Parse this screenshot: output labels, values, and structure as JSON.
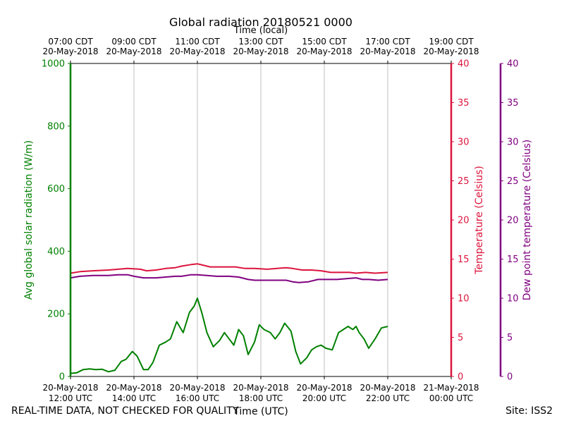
{
  "chart_data": {
    "type": "line",
    "title": "Global radiation 20180521 0000",
    "top_axis_label": "Time (local)",
    "xlabel": "Time (UTC)",
    "ylabel_left": "Avg global solar radiation (W/m)",
    "ylabel_right1": "Temperature (Celsius)",
    "ylabel_right2": "Dew point temperature (Celsius)",
    "x_range_utc_hours": [
      12,
      24
    ],
    "ylim_radiation": [
      0,
      1000
    ],
    "ylim_temperature": [
      0,
      40
    ],
    "ylim_dewpoint": [
      0,
      40
    ],
    "grid": "vertical",
    "x_ticks_utc": [
      {
        "hour": 12,
        "date": "20-May-2018",
        "time": "12:00 UTC"
      },
      {
        "hour": 14,
        "date": "20-May-2018",
        "time": "14:00 UTC"
      },
      {
        "hour": 16,
        "date": "20-May-2018",
        "time": "16:00 UTC"
      },
      {
        "hour": 18,
        "date": "20-May-2018",
        "time": "18:00 UTC"
      },
      {
        "hour": 20,
        "date": "20-May-2018",
        "time": "20:00 UTC"
      },
      {
        "hour": 22,
        "date": "20-May-2018",
        "time": "22:00 UTC"
      },
      {
        "hour": 24,
        "date": "21-May-2018",
        "time": "00:00 UTC"
      }
    ],
    "x_ticks_local": [
      {
        "hour": 12,
        "time": "07:00 CDT",
        "date": "20-May-2018"
      },
      {
        "hour": 14,
        "time": "09:00 CDT",
        "date": "20-May-2018"
      },
      {
        "hour": 16,
        "time": "11:00 CDT",
        "date": "20-May-2018"
      },
      {
        "hour": 18,
        "time": "13:00 CDT",
        "date": "20-May-2018"
      },
      {
        "hour": 20,
        "time": "15:00 CDT",
        "date": "20-May-2018"
      },
      {
        "hour": 22,
        "time": "17:00 CDT",
        "date": "20-May-2018"
      },
      {
        "hour": 24,
        "time": "19:00 CDT",
        "date": "20-May-2018"
      }
    ],
    "y_ticks_radiation": [
      "0",
      "200",
      "400",
      "600",
      "800",
      "1000"
    ],
    "y_ticks_temperature": [
      "0",
      "5",
      "10",
      "15",
      "20",
      "25",
      "30",
      "35",
      "40"
    ],
    "y_ticks_dewpoint": [
      "0",
      "5",
      "10",
      "15",
      "20",
      "25",
      "30",
      "35",
      "40"
    ],
    "series": [
      {
        "name": "Avg global solar radiation",
        "axis": "radiation",
        "color": "#008000",
        "points": [
          [
            12.0,
            10
          ],
          [
            12.2,
            12
          ],
          [
            12.4,
            22
          ],
          [
            12.6,
            24
          ],
          [
            12.8,
            22
          ],
          [
            13.0,
            23
          ],
          [
            13.2,
            15
          ],
          [
            13.4,
            20
          ],
          [
            13.6,
            48
          ],
          [
            13.75,
            55
          ],
          [
            13.95,
            80
          ],
          [
            14.1,
            65
          ],
          [
            14.3,
            22
          ],
          [
            14.45,
            22
          ],
          [
            14.6,
            45
          ],
          [
            14.8,
            100
          ],
          [
            15.0,
            110
          ],
          [
            15.15,
            120
          ],
          [
            15.35,
            175
          ],
          [
            15.55,
            140
          ],
          [
            15.75,
            205
          ],
          [
            15.9,
            225
          ],
          [
            16.0,
            250
          ],
          [
            16.15,
            200
          ],
          [
            16.3,
            140
          ],
          [
            16.5,
            95
          ],
          [
            16.7,
            115
          ],
          [
            16.85,
            140
          ],
          [
            17.0,
            120
          ],
          [
            17.15,
            100
          ],
          [
            17.3,
            150
          ],
          [
            17.45,
            130
          ],
          [
            17.6,
            70
          ],
          [
            17.8,
            110
          ],
          [
            17.95,
            165
          ],
          [
            18.1,
            150
          ],
          [
            18.3,
            140
          ],
          [
            18.45,
            120
          ],
          [
            18.6,
            140
          ],
          [
            18.75,
            170
          ],
          [
            18.95,
            145
          ],
          [
            19.1,
            80
          ],
          [
            19.25,
            40
          ],
          [
            19.45,
            60
          ],
          [
            19.6,
            85
          ],
          [
            19.75,
            95
          ],
          [
            19.9,
            100
          ],
          [
            20.05,
            90
          ],
          [
            20.25,
            85
          ],
          [
            20.45,
            140
          ],
          [
            20.6,
            150
          ],
          [
            20.75,
            160
          ],
          [
            20.9,
            150
          ],
          [
            21.0,
            160
          ],
          [
            21.1,
            140
          ],
          [
            21.25,
            120
          ],
          [
            21.4,
            90
          ],
          [
            21.6,
            120
          ],
          [
            21.8,
            155
          ],
          [
            22.0,
            160
          ]
        ]
      },
      {
        "name": "Temperature",
        "axis": "temperature",
        "color": "#dc143c",
        "points": [
          [
            12.0,
            13.2
          ],
          [
            12.3,
            13.4
          ],
          [
            12.7,
            13.5
          ],
          [
            13.2,
            13.6
          ],
          [
            13.5,
            13.7
          ],
          [
            13.8,
            13.8
          ],
          [
            14.2,
            13.7
          ],
          [
            14.4,
            13.5
          ],
          [
            14.7,
            13.6
          ],
          [
            15.0,
            13.8
          ],
          [
            15.3,
            13.9
          ],
          [
            15.5,
            14.1
          ],
          [
            15.8,
            14.3
          ],
          [
            16.0,
            14.4
          ],
          [
            16.2,
            14.2
          ],
          [
            16.4,
            14.0
          ],
          [
            16.8,
            14.0
          ],
          [
            17.2,
            14.0
          ],
          [
            17.5,
            13.8
          ],
          [
            17.8,
            13.8
          ],
          [
            18.2,
            13.7
          ],
          [
            18.5,
            13.8
          ],
          [
            18.8,
            13.9
          ],
          [
            19.0,
            13.8
          ],
          [
            19.3,
            13.6
          ],
          [
            19.6,
            13.6
          ],
          [
            19.9,
            13.5
          ],
          [
            20.2,
            13.3
          ],
          [
            20.5,
            13.3
          ],
          [
            20.8,
            13.3
          ],
          [
            21.0,
            13.2
          ],
          [
            21.3,
            13.3
          ],
          [
            21.6,
            13.2
          ],
          [
            22.0,
            13.3
          ]
        ]
      },
      {
        "name": "Dew point temperature",
        "axis": "dewpoint",
        "color": "#800080",
        "points": [
          [
            12.0,
            12.6
          ],
          [
            12.3,
            12.8
          ],
          [
            12.7,
            12.9
          ],
          [
            13.2,
            12.9
          ],
          [
            13.5,
            13.0
          ],
          [
            13.8,
            13.0
          ],
          [
            14.0,
            12.8
          ],
          [
            14.3,
            12.6
          ],
          [
            14.7,
            12.6
          ],
          [
            15.0,
            12.7
          ],
          [
            15.3,
            12.8
          ],
          [
            15.5,
            12.8
          ],
          [
            15.8,
            13.0
          ],
          [
            16.0,
            13.0
          ],
          [
            16.3,
            12.9
          ],
          [
            16.6,
            12.8
          ],
          [
            17.0,
            12.8
          ],
          [
            17.3,
            12.7
          ],
          [
            17.6,
            12.4
          ],
          [
            17.8,
            12.3
          ],
          [
            18.2,
            12.3
          ],
          [
            18.5,
            12.3
          ],
          [
            18.8,
            12.3
          ],
          [
            19.0,
            12.1
          ],
          [
            19.2,
            12.0
          ],
          [
            19.5,
            12.1
          ],
          [
            19.8,
            12.4
          ],
          [
            20.1,
            12.4
          ],
          [
            20.4,
            12.4
          ],
          [
            20.7,
            12.5
          ],
          [
            21.0,
            12.6
          ],
          [
            21.2,
            12.4
          ],
          [
            21.4,
            12.4
          ],
          [
            21.7,
            12.3
          ],
          [
            22.0,
            12.4
          ]
        ]
      }
    ]
  },
  "footer": {
    "disclaimer": "REAL-TIME DATA, NOT CHECKED FOR QUALITY",
    "site": "Site: ISS2"
  }
}
